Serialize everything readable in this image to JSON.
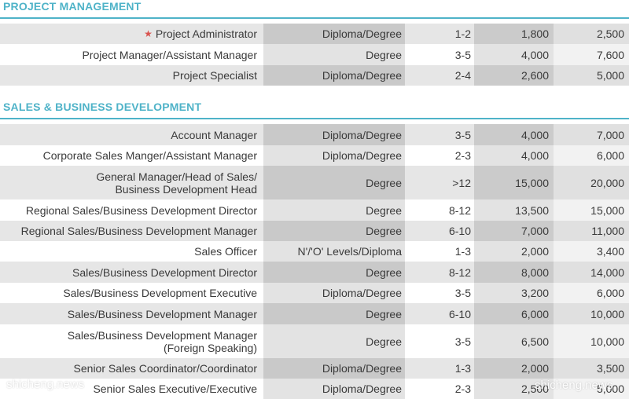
{
  "sections": [
    {
      "title": "PROJECT MANAGEMENT",
      "rows": [
        {
          "title": "Project Administrator",
          "starred": true,
          "qualification": "Diploma/Degree",
          "experience": "1-2",
          "min": "1,800",
          "max": "2,500"
        },
        {
          "title": "Project Manager/Assistant Manager",
          "qualification": "Degree",
          "experience": "3-5",
          "min": "4,000",
          "max": "7,600"
        },
        {
          "title": "Project Specialist",
          "qualification": "Diploma/Degree",
          "experience": "2-4",
          "min": "2,600",
          "max": "5,000"
        }
      ]
    },
    {
      "title": "SALES & BUSINESS DEVELOPMENT",
      "rows": [
        {
          "title": "Account Manager",
          "qualification": "Diploma/Degree",
          "experience": "3-5",
          "min": "4,000",
          "max": "7,000"
        },
        {
          "title": "Corporate Sales Manger/Assistant Manager",
          "qualification": "Diploma/Degree",
          "experience": "2-3",
          "min": "4,000",
          "max": "6,000"
        },
        {
          "title": "General Manager/Head of Sales/",
          "title2": "Business Development Head",
          "qualification": "Degree",
          "experience": ">12",
          "min": "15,000",
          "max": "20,000"
        },
        {
          "title": "Regional Sales/Business Development Director",
          "qualification": "Degree",
          "experience": "8-12",
          "min": "13,500",
          "max": "15,000"
        },
        {
          "title": "Regional Sales/Business Development Manager",
          "qualification": "Degree",
          "experience": "6-10",
          "min": "7,000",
          "max": "11,000"
        },
        {
          "title": "Sales Officer",
          "qualification": "N'/'O' Levels/Diploma",
          "experience": "1-3",
          "min": "2,000",
          "max": "3,400"
        },
        {
          "title": "Sales/Business Development Director",
          "qualification": "Degree",
          "experience": "8-12",
          "min": "8,000",
          "max": "14,000"
        },
        {
          "title": "Sales/Business Development Executive",
          "qualification": "Diploma/Degree",
          "experience": "3-5",
          "min": "3,200",
          "max": "6,000"
        },
        {
          "title": "Sales/Business Development Manager",
          "qualification": "Degree",
          "experience": "6-10",
          "min": "6,000",
          "max": "10,000"
        },
        {
          "title": "Sales/Business Development Manager",
          "title2": "(Foreign Speaking)",
          "qualification": "Degree",
          "experience": "3-5",
          "min": "6,500",
          "max": "10,000"
        },
        {
          "title": "Senior Sales Coordinator/Coordinator",
          "qualification": "Diploma/Degree",
          "experience": "1-3",
          "min": "2,000",
          "max": "3,500"
        },
        {
          "title": "Senior Sales Executive/Executive",
          "qualification": "Diploma/Degree",
          "experience": "2-3",
          "min": "2,500",
          "max": "5,000"
        }
      ]
    }
  ],
  "watermarks": [
    "shicheng.news",
    "shicheng.news"
  ],
  "icons": {
    "star": "star-icon"
  },
  "colors": {
    "accent": "#4fb3c8",
    "star": "#d9534f"
  }
}
